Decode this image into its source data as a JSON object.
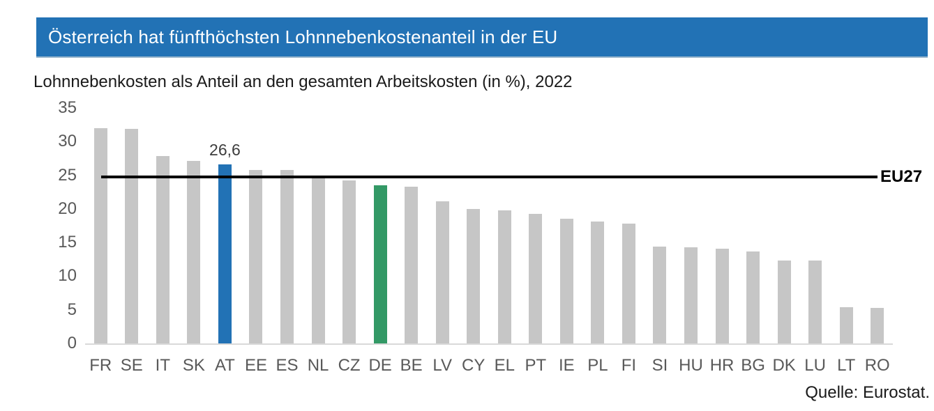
{
  "header": {
    "title": "Österreich hat fünfthöchsten Lohnnebenkostenanteil in der EU",
    "background_color": "#2272b5",
    "text_color": "#ffffff"
  },
  "chart_data": {
    "type": "bar",
    "title": "Lohnnebenkosten als Anteil an den gesamten Arbeitskosten (in %), 2022",
    "categories": [
      "FR",
      "SE",
      "IT",
      "SK",
      "AT",
      "EE",
      "ES",
      "NL",
      "CZ",
      "DE",
      "BE",
      "LV",
      "CY",
      "EL",
      "PT",
      "IE",
      "PL",
      "FI",
      "SI",
      "HU",
      "HR",
      "BG",
      "DK",
      "LU",
      "LT",
      "RO"
    ],
    "values": [
      32.0,
      31.9,
      27.9,
      27.1,
      26.6,
      25.8,
      25.8,
      24.9,
      24.2,
      23.5,
      23.3,
      21.1,
      20.0,
      19.8,
      19.3,
      18.5,
      18.1,
      17.8,
      14.4,
      14.3,
      14.1,
      13.7,
      12.3,
      12.3,
      5.4,
      5.3
    ],
    "xlabel": "",
    "ylabel": "",
    "ylim": [
      0,
      35
    ],
    "yticks": [
      0,
      5,
      10,
      15,
      20,
      25,
      30,
      35
    ],
    "grid": false,
    "legend": "none",
    "bar_color_default": "#c6c6c6",
    "highlights": [
      {
        "category": "AT",
        "color": "#2272b5"
      },
      {
        "category": "DE",
        "color": "#339966"
      }
    ],
    "data_label": {
      "category": "AT",
      "text": "26,6"
    },
    "reference_line": {
      "label": "EU27",
      "value": 24.8,
      "color": "#000000"
    }
  },
  "footer": {
    "source": "Quelle: Eurostat."
  }
}
